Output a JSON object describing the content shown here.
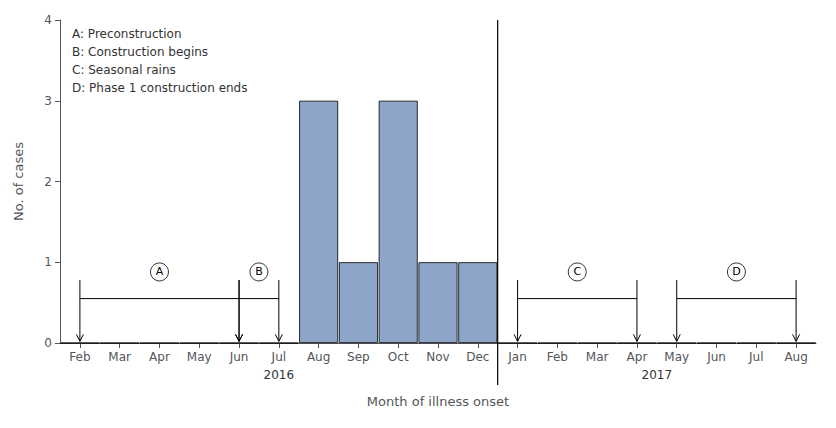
{
  "chart_data": {
    "type": "bar",
    "categories": [
      "Feb",
      "Mar",
      "Apr",
      "May",
      "Jun",
      "Jul",
      "Aug",
      "Sep",
      "Oct",
      "Nov",
      "Dec",
      "Jan",
      "Feb",
      "Mar",
      "Apr",
      "May",
      "Jun",
      "Jul",
      "Aug"
    ],
    "values": [
      0,
      0,
      0,
      0,
      0,
      0,
      3,
      1,
      3,
      1,
      1,
      0,
      0,
      0,
      0,
      0,
      0,
      0,
      0
    ],
    "color": "#8ca5c8",
    "xlabel": "Month of illness onset",
    "ylabel": "No. of cases",
    "ylim": [
      0,
      4
    ],
    "yticks": [
      0,
      1,
      2,
      3,
      4
    ],
    "grid": false,
    "year_groups": [
      {
        "label": "2016",
        "start": 0,
        "end": 10
      },
      {
        "label": "2017",
        "start": 11,
        "end": 18
      }
    ],
    "annotations": [
      {
        "label": "A",
        "start": 0,
        "end": 4
      },
      {
        "label": "B",
        "start": 4,
        "end": 5
      },
      {
        "label": "C",
        "start": 11,
        "end": 14
      },
      {
        "label": "D",
        "start": 15,
        "end": 18
      }
    ],
    "notes": [
      "A: Preconstruction",
      "B: Construction begins",
      "C: Seasonal rains",
      "D: Phase 1 construction ends"
    ]
  }
}
